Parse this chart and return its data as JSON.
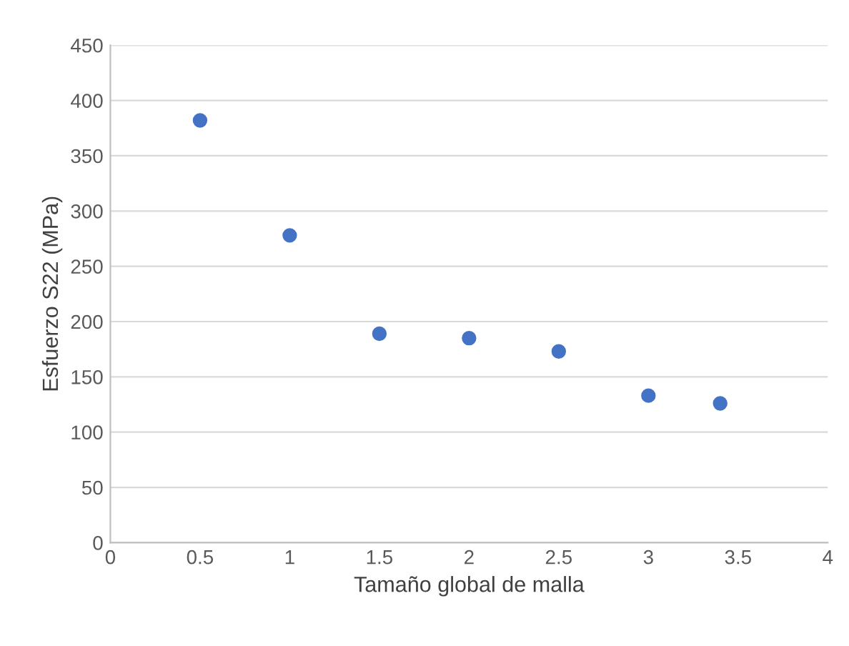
{
  "chart_data": {
    "type": "scatter",
    "xlabel": "Tamaño global de malla",
    "ylabel": "Esfuerzo S22 (MPa)",
    "x": [
      0.5,
      1,
      1.5,
      2,
      2.5,
      3,
      3.4
    ],
    "series": [
      {
        "color": "#4472c4",
        "values": [
          382,
          278,
          189,
          185,
          173,
          133,
          126
        ]
      }
    ],
    "xlim": [
      0,
      4
    ],
    "xticks": [
      0,
      0.5,
      1,
      1.5,
      2,
      2.5,
      3,
      3.5,
      4
    ],
    "ylim": [
      0,
      450
    ],
    "yticks": [
      0,
      50,
      100,
      150,
      200,
      250,
      300,
      350,
      400,
      450
    ],
    "grid": "y",
    "marker": "circle",
    "legend": false
  }
}
